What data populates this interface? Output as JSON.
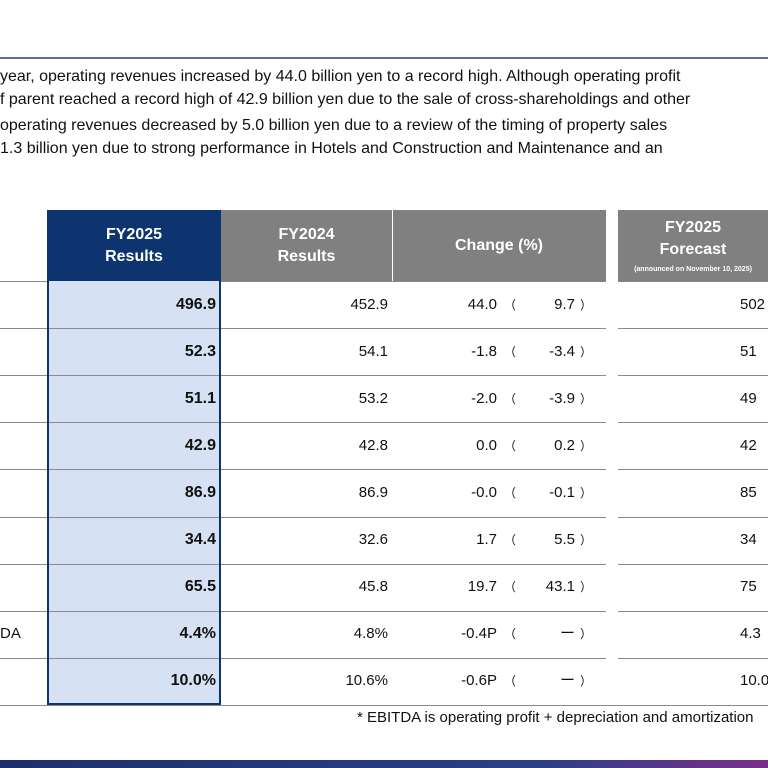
{
  "intro": [
    "year, operating revenues increased by 44.0 billion yen to a record high. Although operating profit",
    "f parent reached a record high of 42.9 billion yen due to the sale of cross-shareholdings and other",
    "operating revenues decreased by 5.0 billion yen due to a review of the timing of property sales",
    "1.3 billion yen due to strong performance in Hotels and Construction and Maintenance and an"
  ],
  "table": {
    "headers": {
      "fy2025": [
        "FY2025",
        "Results"
      ],
      "fy2024": [
        "FY2024",
        "Results"
      ],
      "change": "Change (%)",
      "forecast": [
        "FY2025",
        "Forecast"
      ],
      "forecast_note": "(announced on November 10, 2025)"
    },
    "brackets": [
      "（",
      "）"
    ],
    "rows": [
      {
        "fy2025": "496.9",
        "fy2024": "452.9",
        "change": "44.0",
        "pct": "9.7",
        "forecast": "502"
      },
      {
        "fy2025": "52.3",
        "fy2024": "54.1",
        "change": "-1.8",
        "pct": "-3.4",
        "forecast": "51"
      },
      {
        "fy2025": "51.1",
        "fy2024": "53.2",
        "change": "-2.0",
        "pct": "-3.9",
        "forecast": "49"
      },
      {
        "fy2025": "42.9",
        "fy2024": "42.8",
        "change": "0.0",
        "pct": "0.2",
        "forecast": "42"
      },
      {
        "fy2025": "86.9",
        "fy2024": "86.9",
        "change": "-0.0",
        "pct": "-0.1",
        "forecast": "85"
      },
      {
        "fy2025": "34.4",
        "fy2024": "32.6",
        "change": "1.7",
        "pct": "5.5",
        "forecast": "34"
      },
      {
        "fy2025": "65.5",
        "fy2024": "45.8",
        "change": "19.7",
        "pct": "43.1",
        "forecast": "75"
      },
      {
        "label": "DA",
        "fy2025": "4.4%",
        "fy2024": "4.8%",
        "change": "-0.4P",
        "pct": "ー",
        "forecast": "4.3"
      },
      {
        "fy2025": "10.0%",
        "fy2024": "10.6%",
        "change": "-0.6P",
        "pct": "ー",
        "forecast": "10.0"
      }
    ]
  },
  "footnote": "* EBITDA is operating profit + depreciation and amortization"
}
